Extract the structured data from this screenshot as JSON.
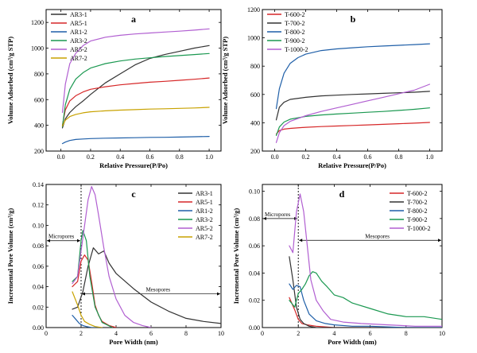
{
  "chart_data": [
    {
      "panel": "a",
      "type": "line",
      "xlabel": "Relative Pressure(P/Po)",
      "ylabel": "Volume Adsorbed (cm³/g STP)",
      "xlim": [
        -0.1,
        1.08
      ],
      "ylim": [
        200,
        1300
      ],
      "xticks": [
        0.0,
        0.2,
        0.4,
        0.6,
        0.8,
        1.0
      ],
      "xtick_labels": [
        "0.0",
        "0.2",
        "0.4",
        "0.6",
        "0.8",
        "1.0"
      ],
      "yticks": [
        200,
        400,
        600,
        800,
        1000,
        1200
      ],
      "ytick_labels": [
        "200",
        "400",
        "600",
        "800",
        "1000",
        "1200"
      ],
      "legend_position": "top-left",
      "annotations": [],
      "series": [
        {
          "name": "AR3-1",
          "color": "#333333",
          "x": [
            0.01,
            0.03,
            0.06,
            0.1,
            0.15,
            0.2,
            0.3,
            0.4,
            0.5,
            0.6,
            0.7,
            0.8,
            0.9,
            1.0
          ],
          "y": [
            380,
            450,
            500,
            545,
            590,
            640,
            730,
            800,
            870,
            920,
            950,
            975,
            1000,
            1020
          ]
        },
        {
          "name": "AR5-1",
          "color": "#d62728",
          "x": [
            0.01,
            0.03,
            0.06,
            0.1,
            0.15,
            0.2,
            0.3,
            0.4,
            0.5,
            0.6,
            0.7,
            0.8,
            0.9,
            1.0
          ],
          "y": [
            400,
            520,
            590,
            630,
            660,
            680,
            700,
            715,
            725,
            735,
            742,
            750,
            758,
            768
          ]
        },
        {
          "name": "AR1-2",
          "color": "#1f5fa8",
          "x": [
            0.01,
            0.03,
            0.06,
            0.1,
            0.15,
            0.2,
            0.3,
            0.4,
            0.5,
            0.6,
            0.7,
            0.8,
            0.9,
            1.0
          ],
          "y": [
            258,
            270,
            282,
            290,
            294,
            297,
            300,
            302,
            304,
            306,
            307,
            309,
            311,
            314
          ]
        },
        {
          "name": "AR3-2",
          "color": "#1a9850",
          "x": [
            0.01,
            0.03,
            0.06,
            0.1,
            0.15,
            0.2,
            0.3,
            0.4,
            0.5,
            0.6,
            0.7,
            0.8,
            0.9,
            1.0
          ],
          "y": [
            390,
            560,
            680,
            760,
            810,
            845,
            880,
            900,
            915,
            925,
            935,
            942,
            950,
            958
          ]
        },
        {
          "name": "AR5-2",
          "color": "#b15fd1",
          "x": [
            0.01,
            0.03,
            0.06,
            0.1,
            0.15,
            0.2,
            0.3,
            0.4,
            0.5,
            0.6,
            0.7,
            0.8,
            0.9,
            1.0
          ],
          "y": [
            500,
            720,
            880,
            960,
            1020,
            1055,
            1085,
            1100,
            1110,
            1118,
            1125,
            1132,
            1140,
            1150
          ]
        },
        {
          "name": "AR7-2",
          "color": "#c8a200",
          "x": [
            0.01,
            0.03,
            0.06,
            0.1,
            0.15,
            0.2,
            0.3,
            0.4,
            0.5,
            0.6,
            0.7,
            0.8,
            0.9,
            1.0
          ],
          "y": [
            395,
            440,
            468,
            485,
            497,
            505,
            513,
            518,
            522,
            526,
            529,
            532,
            535,
            540
          ]
        }
      ]
    },
    {
      "panel": "b",
      "type": "line",
      "xlabel": "Relative Pressure(P/Po)",
      "ylabel": "Volume Adsorbed (cm³/g STP)",
      "xlim": [
        -0.08,
        1.08
      ],
      "ylim": [
        200,
        1200
      ],
      "xticks": [
        0.0,
        0.2,
        0.4,
        0.6,
        0.8,
        1.0
      ],
      "xtick_labels": [
        "0.0",
        "0.2",
        "0.4",
        "0.6",
        "0.8",
        "1.0"
      ],
      "yticks": [
        200,
        400,
        600,
        800,
        1000,
        1200
      ],
      "ytick_labels": [
        "200",
        "400",
        "600",
        "800",
        "1000",
        "1200"
      ],
      "legend_position": "top-left",
      "annotations": [],
      "series": [
        {
          "name": "T-600-2",
          "color": "#d62728",
          "x": [
            0.01,
            0.03,
            0.06,
            0.1,
            0.2,
            0.3,
            0.4,
            0.5,
            0.6,
            0.7,
            0.8,
            0.9,
            1.0
          ],
          "y": [
            320,
            345,
            355,
            360,
            368,
            373,
            377,
            381,
            385,
            389,
            393,
            397,
            402
          ]
        },
        {
          "name": "T-700-2",
          "color": "#333333",
          "x": [
            0.01,
            0.03,
            0.06,
            0.1,
            0.2,
            0.3,
            0.4,
            0.5,
            0.6,
            0.7,
            0.8,
            0.9,
            1.0
          ],
          "y": [
            420,
            510,
            545,
            565,
            580,
            590,
            595,
            600,
            604,
            608,
            612,
            616,
            622
          ]
        },
        {
          "name": "T-800-2",
          "color": "#1f5fa8",
          "x": [
            0.01,
            0.03,
            0.06,
            0.1,
            0.15,
            0.2,
            0.3,
            0.4,
            0.5,
            0.6,
            0.7,
            0.8,
            0.9,
            1.0
          ],
          "y": [
            500,
            640,
            750,
            820,
            860,
            885,
            910,
            922,
            930,
            937,
            942,
            947,
            952,
            958
          ]
        },
        {
          "name": "T-900-2",
          "color": "#1a9850",
          "x": [
            0.01,
            0.03,
            0.06,
            0.1,
            0.2,
            0.3,
            0.4,
            0.5,
            0.6,
            0.7,
            0.8,
            0.9,
            1.0
          ],
          "y": [
            310,
            370,
            405,
            425,
            445,
            455,
            462,
            468,
            474,
            480,
            487,
            495,
            505
          ]
        },
        {
          "name": "T-1000-2",
          "color": "#b15fd1",
          "x": [
            0.01,
            0.03,
            0.06,
            0.1,
            0.2,
            0.3,
            0.4,
            0.5,
            0.6,
            0.7,
            0.8,
            0.9,
            1.0
          ],
          "y": [
            260,
            330,
            380,
            410,
            450,
            480,
            505,
            530,
            555,
            580,
            605,
            630,
            672
          ]
        }
      ]
    },
    {
      "panel": "c",
      "type": "line",
      "xlabel": "Pore Width (nm)",
      "ylabel": "Incremental Pore Volume (cm³/g)",
      "xlim": [
        0,
        10
      ],
      "ylim": [
        0,
        0.14
      ],
      "xticks": [
        0,
        2,
        4,
        6,
        8,
        10
      ],
      "xtick_labels": [
        "0",
        "2",
        "4",
        "6",
        "8",
        "10"
      ],
      "yticks": [
        0.0,
        0.02,
        0.04,
        0.06,
        0.08,
        0.1,
        0.12,
        0.14
      ],
      "ytick_labels": [
        "0.00",
        "0.02",
        "0.04",
        "0.06",
        "0.08",
        "0.10",
        "0.12",
        "0.14"
      ],
      "legend_position": "top-right",
      "divider_x": 2,
      "annotations": [
        {
          "label": "Micropores",
          "y": 0.085,
          "from_x": 0,
          "to_x": 2
        },
        {
          "label": "Mesopores",
          "y": 0.033,
          "from_x": 2,
          "to_x": 10
        }
      ],
      "series": [
        {
          "name": "AR3-1",
          "color": "#333333",
          "x": [
            1.5,
            1.8,
            2.1,
            2.4,
            2.7,
            3.0,
            3.3,
            3.6,
            4.0,
            5.0,
            6.0,
            7.0,
            8.0,
            9.0,
            10.0
          ],
          "y": [
            0.018,
            0.02,
            0.035,
            0.06,
            0.078,
            0.072,
            0.075,
            0.063,
            0.053,
            0.038,
            0.025,
            0.016,
            0.009,
            0.006,
            0.004
          ]
        },
        {
          "name": "AR5-1",
          "color": "#d62728",
          "x": [
            1.5,
            1.8,
            2.0,
            2.2,
            2.4,
            2.6,
            2.8,
            3.0,
            3.2,
            3.6,
            4.0
          ],
          "y": [
            0.04,
            0.045,
            0.065,
            0.071,
            0.066,
            0.045,
            0.022,
            0.012,
            0.006,
            0.002,
            0.0
          ]
        },
        {
          "name": "AR1-2",
          "color": "#1f5fa8",
          "x": [
            1.5,
            1.7,
            1.9,
            2.1,
            2.3,
            2.6,
            3.0
          ],
          "y": [
            0.012,
            0.008,
            0.004,
            0.002,
            0.001,
            0.0,
            0.0
          ]
        },
        {
          "name": "AR3-2",
          "color": "#1a9850",
          "x": [
            1.5,
            1.8,
            2.0,
            2.1,
            2.3,
            2.5,
            2.8,
            3.2,
            3.8
          ],
          "y": [
            0.045,
            0.05,
            0.085,
            0.095,
            0.085,
            0.05,
            0.02,
            0.005,
            0.0
          ]
        },
        {
          "name": "AR5-2",
          "color": "#b15fd1",
          "x": [
            1.5,
            1.8,
            2.0,
            2.2,
            2.4,
            2.6,
            2.8,
            3.0,
            3.3,
            3.6,
            4.0,
            4.5,
            5.0,
            5.5,
            6.0
          ],
          "y": [
            0.043,
            0.05,
            0.075,
            0.1,
            0.125,
            0.138,
            0.13,
            0.11,
            0.078,
            0.05,
            0.028,
            0.012,
            0.005,
            0.002,
            0.0
          ]
        },
        {
          "name": "AR7-2",
          "color": "#c8a200",
          "x": [
            1.5,
            1.8,
            2.0,
            2.2,
            2.5,
            2.8,
            3.2
          ],
          "y": [
            0.035,
            0.022,
            0.012,
            0.006,
            0.003,
            0.001,
            0.0
          ]
        }
      ]
    },
    {
      "panel": "d",
      "type": "line",
      "xlabel": "Pore Width (nm)",
      "ylabel": "Incremental Pore Volume (cm³/g)",
      "xlim": [
        0,
        10
      ],
      "ylim": [
        0,
        0.105
      ],
      "xticks": [
        0,
        2,
        4,
        6,
        8,
        10
      ],
      "xtick_labels": [
        "0",
        "2",
        "4",
        "6",
        "8",
        "10"
      ],
      "yticks": [
        0.0,
        0.02,
        0.04,
        0.06,
        0.08,
        0.1
      ],
      "ytick_labels": [
        "0.00",
        "0.02",
        "0.04",
        "0.06",
        "0.08",
        "0.10"
      ],
      "legend_position": "top-right",
      "divider_x": 2,
      "annotations": [
        {
          "label": "Micropores",
          "y": 0.08,
          "from_x": 0,
          "to_x": 2
        },
        {
          "label": "Mesopores",
          "y": 0.064,
          "from_x": 2,
          "to_x": 10
        }
      ],
      "series": [
        {
          "name": "T-600-2",
          "color": "#d62728",
          "x": [
            1.5,
            1.8,
            2.0,
            2.2,
            2.5,
            3.0,
            4.0,
            6.0,
            8.0,
            10.0
          ],
          "y": [
            0.022,
            0.013,
            0.006,
            0.003,
            0.002,
            0.001,
            0.0,
            0.0,
            0.0,
            0.0
          ]
        },
        {
          "name": "T-700-2",
          "color": "#333333",
          "x": [
            1.5,
            1.7,
            1.9,
            2.1,
            2.3,
            2.6,
            3.0,
            4.0,
            6.0,
            8.0,
            10.0
          ],
          "y": [
            0.052,
            0.035,
            0.015,
            0.006,
            0.003,
            0.001,
            0.0,
            0.0,
            0.0,
            0.0,
            0.0
          ]
        },
        {
          "name": "T-800-2",
          "color": "#1f5fa8",
          "x": [
            1.5,
            1.7,
            1.9,
            2.1,
            2.3,
            2.6,
            3.0,
            3.5,
            4.0,
            5.0,
            6.0,
            8.0,
            10.0
          ],
          "y": [
            0.032,
            0.028,
            0.031,
            0.03,
            0.02,
            0.01,
            0.005,
            0.003,
            0.002,
            0.001,
            0.001,
            0.0,
            0.0
          ]
        },
        {
          "name": "T-900-2",
          "color": "#1a9850",
          "x": [
            1.5,
            1.8,
            2.0,
            2.2,
            2.4,
            2.6,
            2.8,
            3.0,
            3.3,
            3.6,
            4.0,
            4.5,
            5.0,
            6.0,
            7.0,
            8.0,
            9.0,
            10.0
          ],
          "y": [
            0.02,
            0.015,
            0.025,
            0.028,
            0.032,
            0.038,
            0.041,
            0.04,
            0.034,
            0.03,
            0.024,
            0.022,
            0.018,
            0.014,
            0.01,
            0.008,
            0.008,
            0.006
          ]
        },
        {
          "name": "T-1000-2",
          "color": "#b15fd1",
          "x": [
            1.5,
            1.7,
            1.9,
            2.1,
            2.3,
            2.5,
            2.7,
            3.0,
            3.4,
            3.8,
            4.5,
            5.5,
            7.0,
            8.5,
            10.0
          ],
          "y": [
            0.06,
            0.055,
            0.085,
            0.098,
            0.085,
            0.06,
            0.035,
            0.02,
            0.012,
            0.006,
            0.004,
            0.003,
            0.002,
            0.001,
            0.001
          ]
        }
      ]
    }
  ]
}
